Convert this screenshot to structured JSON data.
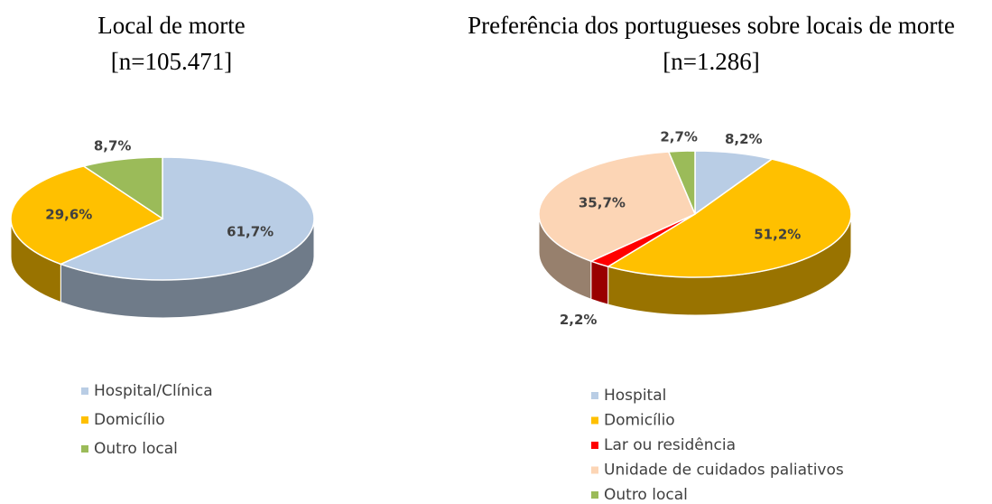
{
  "chart_data": [
    {
      "type": "pie3d",
      "title": "Local de morte",
      "subtitle": "[n=105.471]",
      "categories": [
        "Hospital/Clínica",
        "Domicílio",
        "Outro local"
      ],
      "values": [
        61.7,
        29.6,
        8.7
      ],
      "value_labels": [
        "61,7%",
        "29,6%",
        "8,7%"
      ],
      "colors": [
        "#b9cde5",
        "#ffc000",
        "#9bbb59"
      ]
    },
    {
      "type": "pie3d",
      "title": "Preferência dos portugueses sobre locais de morte",
      "subtitle": "[n=1.286]",
      "categories": [
        "Hospital",
        "Domicílio",
        "Lar ou residência",
        "Unidade de cuidados paliativos",
        "Outro local"
      ],
      "values": [
        8.2,
        51.2,
        2.2,
        35.7,
        2.7
      ],
      "value_labels": [
        "8,2%",
        "51,2%",
        "2,2%",
        "35,7%",
        "2,7%"
      ],
      "colors": [
        "#b9cde5",
        "#ffc000",
        "#ff0000",
        "#fcd5b5",
        "#9bbb59"
      ]
    }
  ]
}
